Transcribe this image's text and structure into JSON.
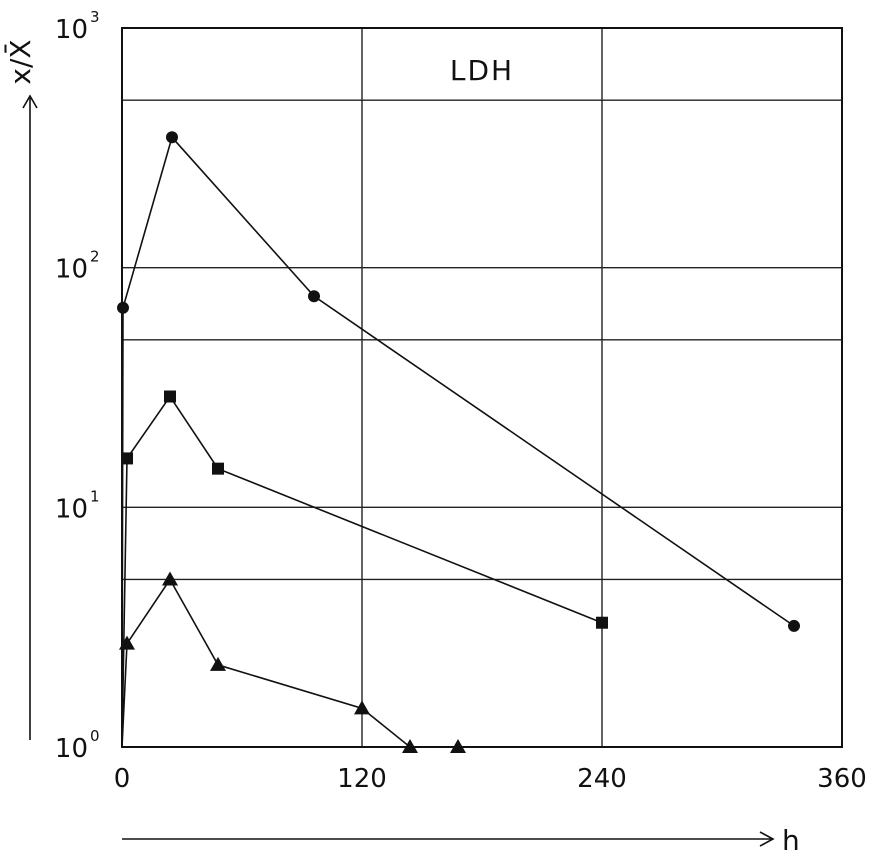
{
  "chart_data": {
    "type": "line",
    "title": "LDH",
    "xlabel": "h",
    "ylabel": "x/X̄",
    "xlim": [
      0,
      360
    ],
    "ylim": [
      1,
      1000
    ],
    "yscale": "log",
    "grid": true,
    "xticks": [
      0,
      120,
      240,
      360
    ],
    "xtick_labels": [
      "0",
      "120",
      "240",
      "360"
    ],
    "yticks": [
      1,
      10,
      100,
      1000
    ],
    "ytick_labels": [
      {
        "base": "10",
        "exp": "0"
      },
      {
        "base": "10",
        "exp": "1"
      },
      {
        "base": "10",
        "exp": "2"
      },
      {
        "base": "10",
        "exp": "3"
      }
    ],
    "series": [
      {
        "marker": "circle",
        "x": [
          0,
          0.5,
          25,
          96,
          336
        ],
        "y": [
          1,
          68,
          350,
          76,
          3.2
        ]
      },
      {
        "marker": "square",
        "x": [
          0,
          2.5,
          24,
          48,
          240
        ],
        "y": [
          1,
          16,
          29,
          14.5,
          3.3
        ]
      },
      {
        "marker": "triangle",
        "x": [
          0,
          2.5,
          24,
          48,
          120,
          144,
          168
        ],
        "y": [
          1,
          2.7,
          5,
          2.2,
          1.45,
          1.0,
          1.0
        ]
      }
    ]
  }
}
